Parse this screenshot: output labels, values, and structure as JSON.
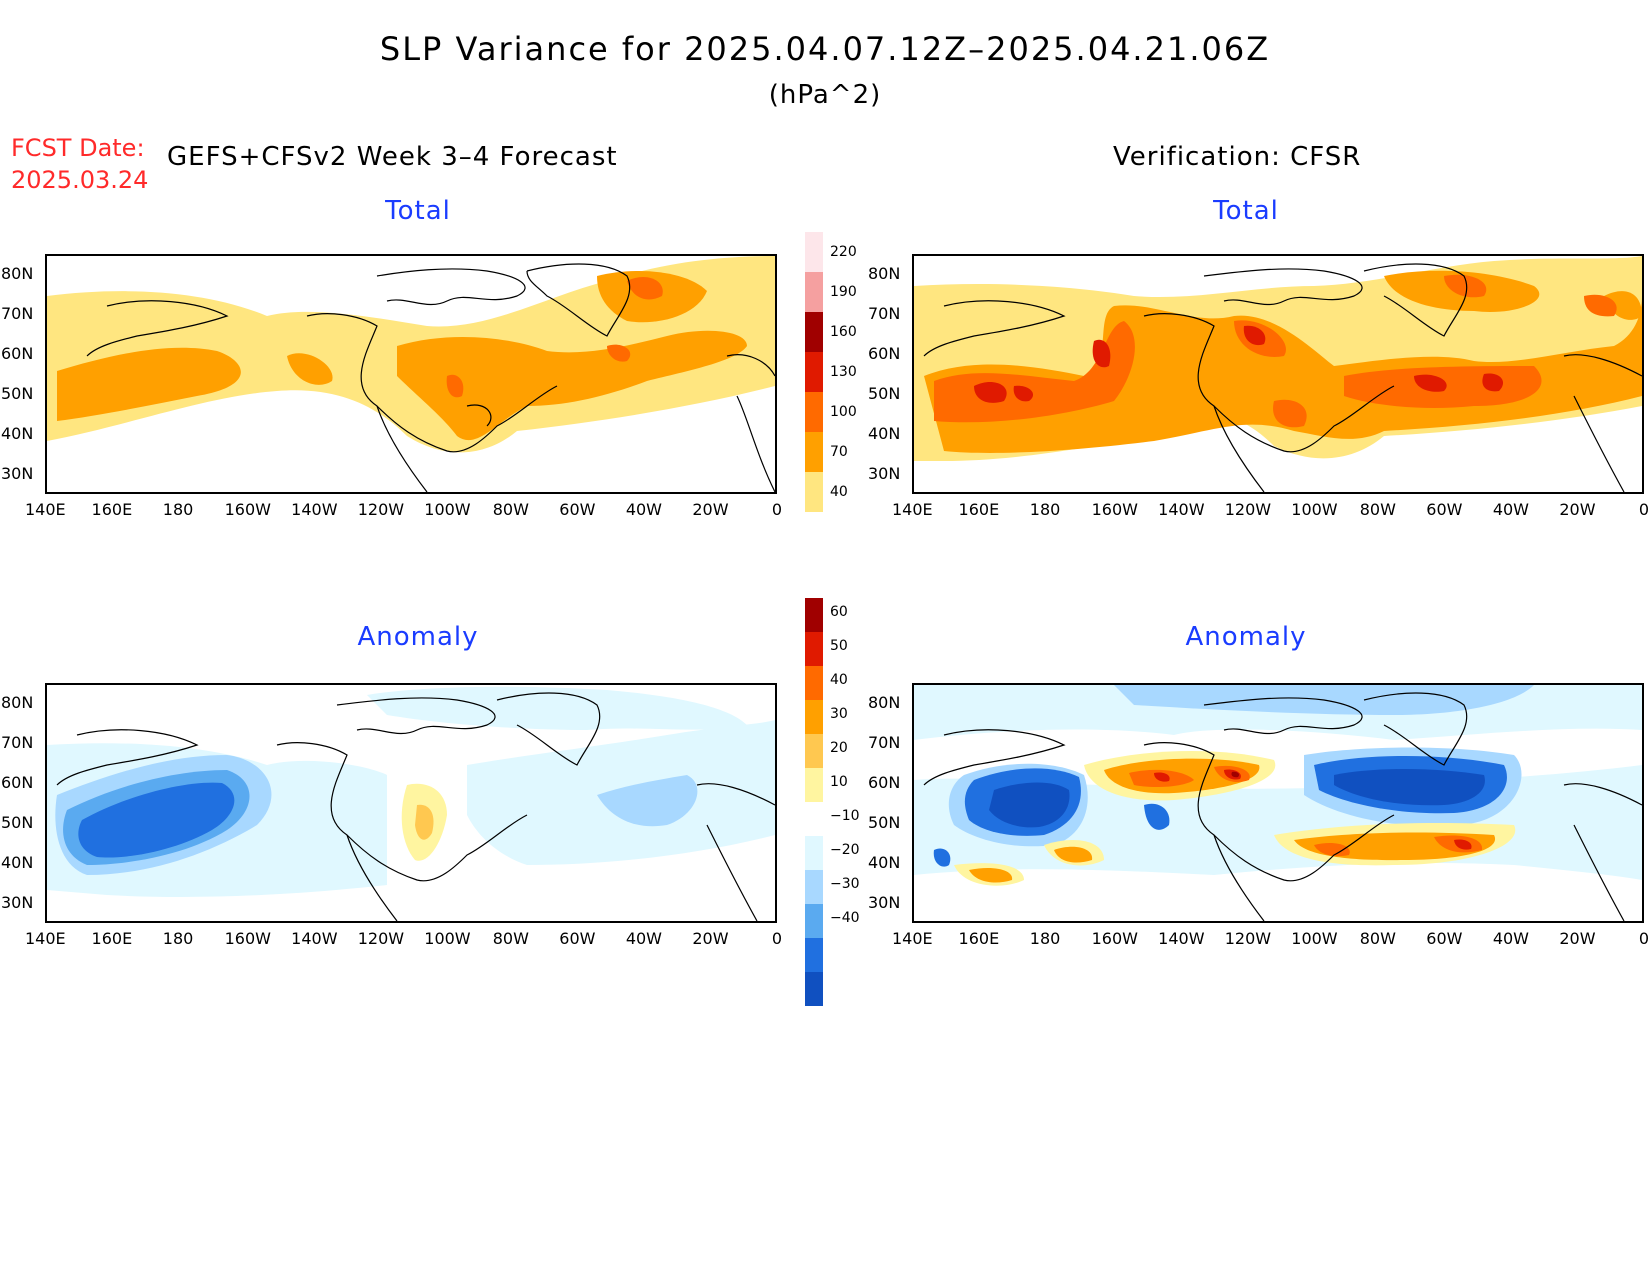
{
  "title": "SLP Variance for 2025.04.07.12Z–2025.04.21.06Z",
  "units": "(hPa^2)",
  "forecast": {
    "date_label": "FCST Date:",
    "date_value": "2025.03.24"
  },
  "left_header": "GEFS+CFSv2 Week 3–4 Forecast",
  "right_header": "Verification: CFSR",
  "panels": {
    "fcst_total": {
      "title": "Total"
    },
    "verif_total": {
      "title": "Total"
    },
    "fcst_anom": {
      "title": "Anomaly"
    },
    "verif_anom": {
      "title": "Anomaly"
    }
  },
  "axes": {
    "lon_labels": [
      "140E",
      "160E",
      "180",
      "160W",
      "140W",
      "120W",
      "100W",
      "80W",
      "60W",
      "40W",
      "20W",
      "0"
    ],
    "lat_labels": [
      "80N",
      "70N",
      "60N",
      "50N",
      "40N",
      "30N"
    ]
  },
  "colorbar_total": {
    "levels": [
      "220",
      "190",
      "160",
      "130",
      "100",
      "70",
      "40"
    ],
    "colors": [
      "#fde6ea",
      "#f5a0a0",
      "#a00000",
      "#e01a00",
      "#ff6a00",
      "#ffa000",
      "#ffe680"
    ]
  },
  "colorbar_anomaly": {
    "levels": [
      "60",
      "50",
      "40",
      "30",
      "20",
      "10",
      "−10",
      "−20",
      "−30",
      "−40"
    ],
    "colors": [
      "#a00000",
      "#e01a00",
      "#ff6a00",
      "#ffa000",
      "#ffc850",
      "#fff5a0",
      "#ffffff",
      "#e0f8ff",
      "#a8d8ff",
      "#5aaaf0",
      "#2070e0",
      "#1050c0"
    ]
  },
  "chart_data": [
    {
      "type": "heatmap",
      "name": "GEFS+CFSv2 Total",
      "variable": "SLP variance (hPa^2)",
      "levels": [
        40,
        70,
        100,
        130,
        160,
        190,
        220
      ]
    },
    {
      "type": "heatmap",
      "name": "CFSR Total",
      "variable": "SLP variance (hPa^2)",
      "levels": [
        40,
        70,
        100,
        130,
        160,
        190,
        220
      ]
    },
    {
      "type": "heatmap",
      "name": "GEFS+CFSv2 Anomaly",
      "variable": "SLP variance anomaly (hPa^2)",
      "levels": [
        -40,
        -30,
        -20,
        -10,
        10,
        20,
        30,
        40,
        50,
        60
      ]
    },
    {
      "type": "heatmap",
      "name": "CFSR Anomaly",
      "variable": "SLP variance anomaly (hPa^2)",
      "levels": [
        -40,
        -30,
        -20,
        -10,
        10,
        20,
        30,
        40,
        50,
        60
      ]
    }
  ]
}
